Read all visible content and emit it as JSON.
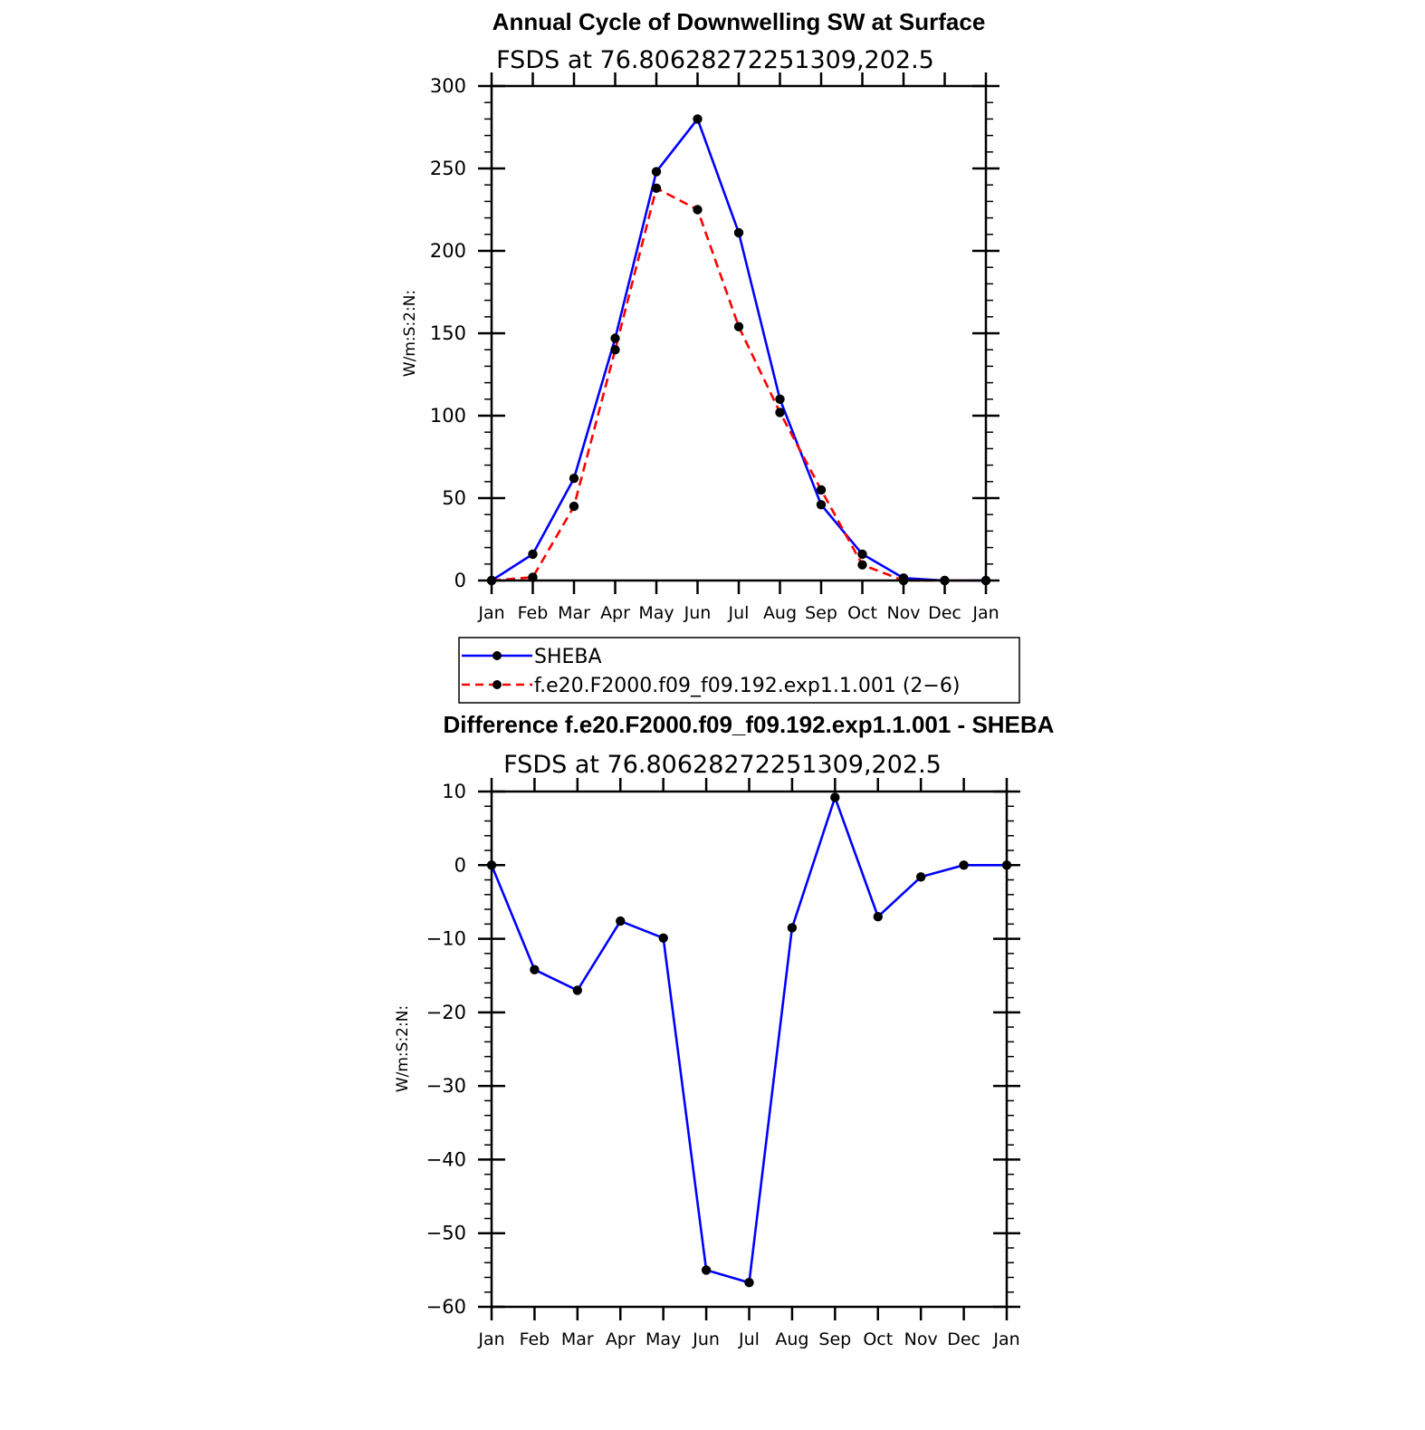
{
  "chart_data": [
    {
      "type": "line",
      "title": "Annual Cycle of Downwelling SW at Surface",
      "subtitle": "FSDS at 76.80628272251309,202.5",
      "ylabel": "W/m:S:2:N:",
      "xlabel": "",
      "ylim": [
        0,
        300
      ],
      "yticks": [
        "0",
        "50",
        "100",
        "150",
        "200",
        "250",
        "300"
      ],
      "categories": [
        "Jan",
        "Feb",
        "Mar",
        "Apr",
        "May",
        "Jun",
        "Jul",
        "Aug",
        "Sep",
        "Oct",
        "Nov",
        "Dec",
        "Jan"
      ],
      "grid": false,
      "legend_position": "below",
      "series": [
        {
          "name": "SHEBA",
          "color": "#0000ff",
          "dash": "solid",
          "values": [
            0,
            16,
            62,
            147,
            248,
            280,
            211,
            110,
            46,
            16,
            1.5,
            0,
            0
          ]
        },
        {
          "name": "f.e20.F2000.f09_f09.192.exp1.1.001 (2−6)",
          "color": "#ff0000",
          "dash": "dashed",
          "values": [
            0,
            2,
            45,
            140,
            238,
            225,
            154,
            102,
            55,
            9.5,
            0,
            0,
            0
          ]
        }
      ]
    },
    {
      "type": "line",
      "title": "Difference f.e20.F2000.f09_f09.192.exp1.1.001 - SHEBA",
      "subtitle": "FSDS at 76.80628272251309,202.5",
      "ylabel": "W/m:S:2:N:",
      "xlabel": "",
      "ylim": [
        -60,
        10
      ],
      "yticks": [
        "−60",
        "−50",
        "−40",
        "−30",
        "−20",
        "−10",
        "0",
        "10"
      ],
      "categories": [
        "Jan",
        "Feb",
        "Mar",
        "Apr",
        "May",
        "Jun",
        "Jul",
        "Aug",
        "Sep",
        "Oct",
        "Nov",
        "Dec",
        "Jan"
      ],
      "grid": false,
      "series": [
        {
          "color": "#0000ff",
          "dash": "solid",
          "values": [
            0,
            -14.2,
            -17,
            -7.6,
            -9.9,
            -55,
            -56.7,
            -8.5,
            9.2,
            -7,
            -1.6,
            0,
            0
          ]
        }
      ]
    }
  ]
}
